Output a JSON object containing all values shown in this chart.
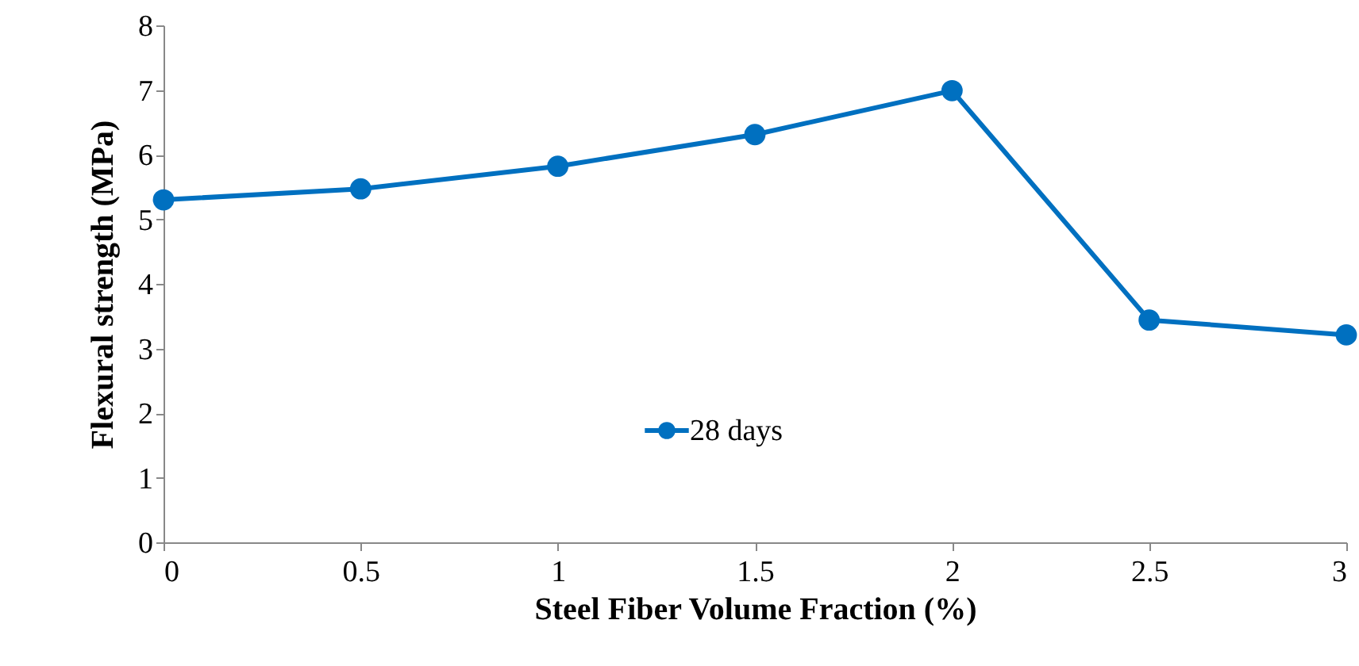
{
  "chart_data": {
    "type": "line",
    "xlabel": "Steel Fiber Volume Fraction (%)",
    "ylabel": "Flexural strength (MPa)",
    "x": [
      0,
      0.5,
      1,
      1.5,
      2,
      2.5,
      3
    ],
    "series": [
      {
        "name": "28 days",
        "color": "#0070c0",
        "values": [
          5.3,
          5.47,
          5.82,
          6.31,
          6.99,
          3.44,
          3.21
        ]
      }
    ],
    "xlim": [
      0,
      3
    ],
    "xticks": [
      0,
      0.5,
      1,
      1.5,
      2,
      2.5,
      3
    ],
    "ylim": [
      0,
      8
    ],
    "yticks": [
      0,
      1,
      2,
      3,
      4,
      5,
      6,
      7,
      8
    ],
    "grid": false,
    "legend": "bottom",
    "marker": "circle",
    "line_style": "solid"
  }
}
